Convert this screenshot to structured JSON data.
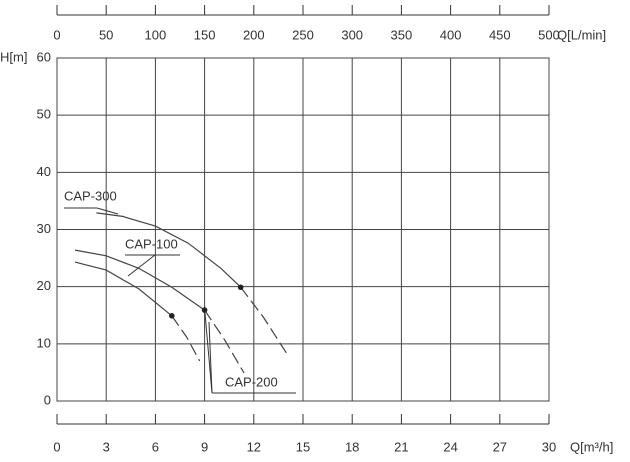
{
  "chart_data": {
    "type": "line",
    "ylabel": "H[m]",
    "xlabel": "Q[m³/h]",
    "x2label": "Q[L/min]",
    "xlim": [
      0,
      30
    ],
    "xticks": [
      0,
      3,
      6,
      9,
      12,
      15,
      18,
      21,
      24,
      27,
      30
    ],
    "x2lim": [
      0,
      500
    ],
    "x2ticks": [
      0,
      50,
      100,
      150,
      200,
      250,
      300,
      350,
      400,
      450,
      500
    ],
    "ylim": [
      0,
      60
    ],
    "yticks": [
      0,
      10,
      20,
      30,
      40,
      50,
      60
    ],
    "grid": true,
    "series": [
      {
        "name": "CAP-300",
        "color": "#444444",
        "x": [
          2.4,
          4,
          6,
          8,
          10,
          11.2
        ],
        "values": [
          32.9,
          32.3,
          30.6,
          27.6,
          23.2,
          19.9
        ],
        "extension": {
          "x": [
            11.2,
            12.6,
            14.1
          ],
          "values": [
            19.9,
            14.6,
            7.9
          ]
        }
      },
      {
        "name": "CAP-200",
        "color": "#444444",
        "x": [
          1.1,
          3,
          5,
          7,
          9.0
        ],
        "values": [
          26.4,
          25.4,
          23.2,
          19.9,
          15.9
        ],
        "extension": {
          "x": [
            9.0,
            10.2,
            11.4
          ],
          "values": [
            15.9,
            10.8,
            4.9
          ]
        }
      },
      {
        "name": "CAP-100",
        "color": "#444444",
        "x": [
          1.1,
          3,
          5,
          7.0
        ],
        "values": [
          24.3,
          22.9,
          19.6,
          14.9
        ],
        "extension": {
          "x": [
            7.0,
            7.9,
            8.7
          ],
          "values": [
            14.9,
            11.2,
            7.0
          ]
        }
      }
    ]
  }
}
